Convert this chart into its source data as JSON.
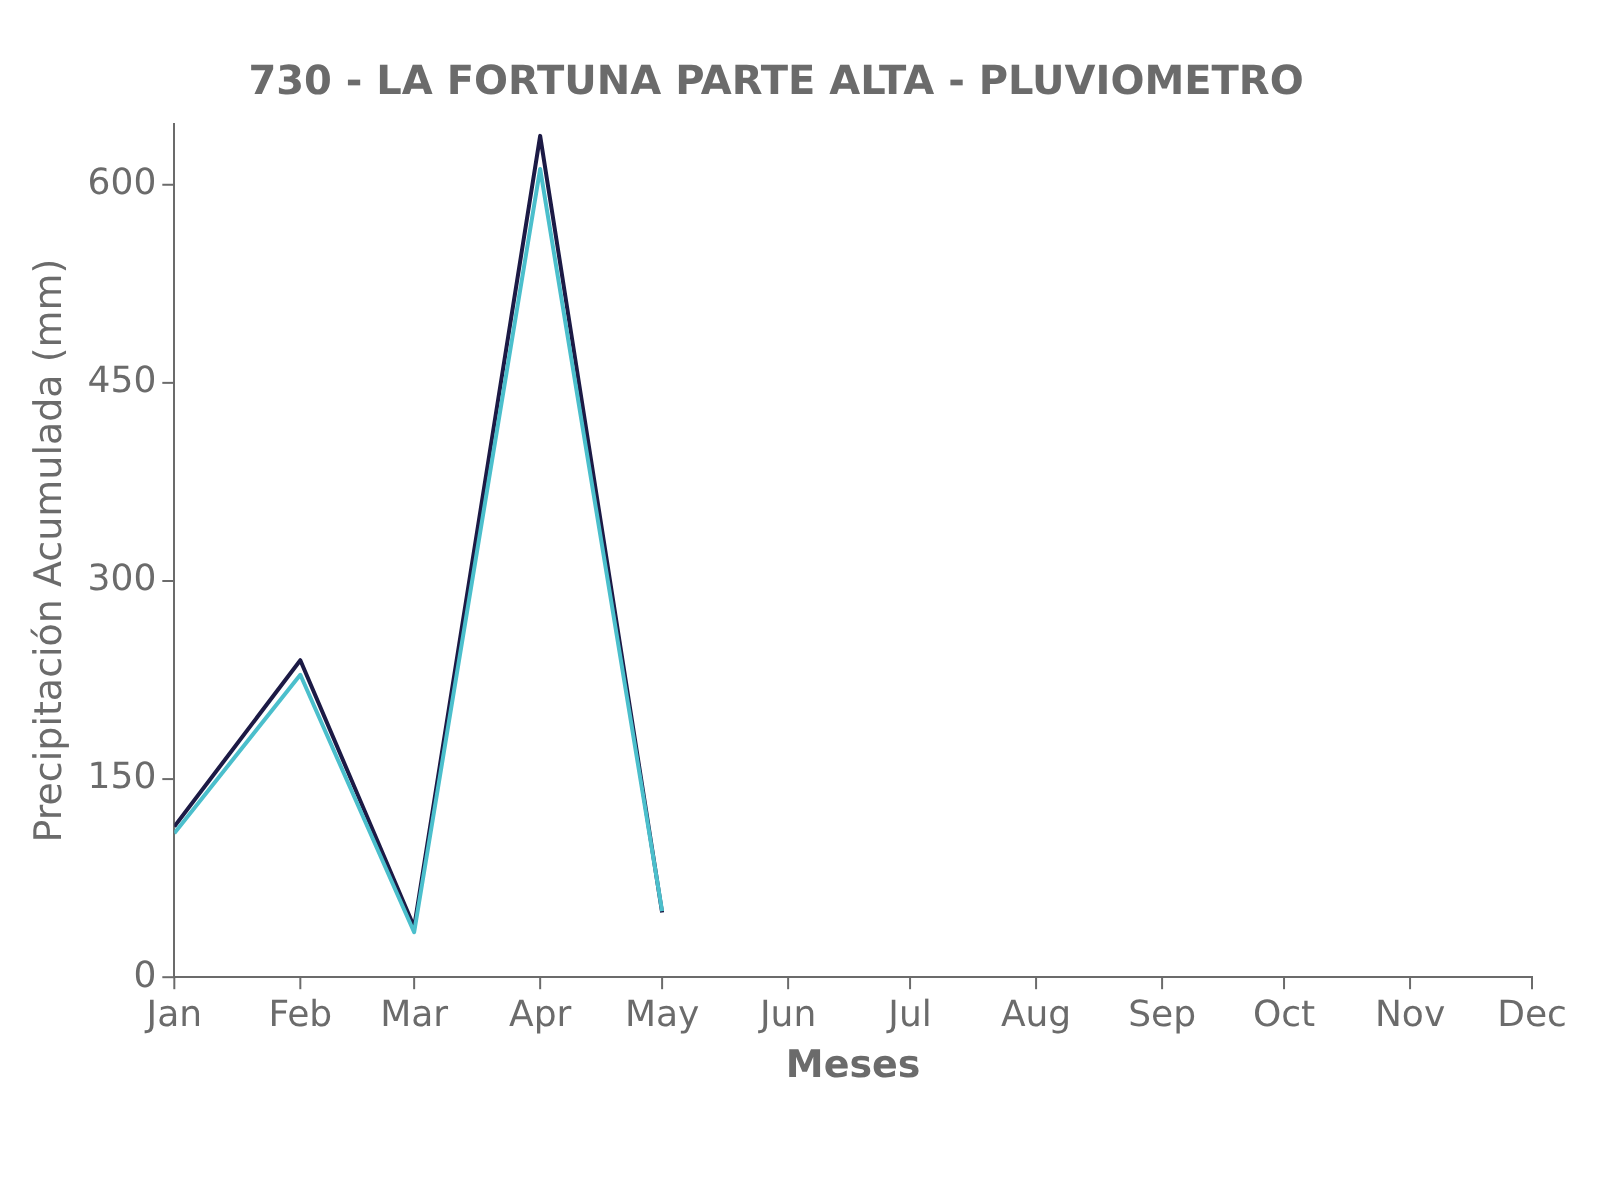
{
  "chart_data": {
    "type": "line",
    "title": "730 - LA FORTUNA PARTE ALTA - PLUVIOMETRO",
    "xlabel": "Meses",
    "ylabel": "Precipitación Acumulada (mm)",
    "x": [
      "--01-01",
      "--02-01",
      "--03-01",
      "--04-01",
      "--05-01"
    ],
    "series": [
      {
        "color": "#1c1a45",
        "values": [
          114,
          240,
          38,
          637,
          49
        ]
      },
      {
        "color": "#4bbfcc",
        "values": [
          109,
          229,
          34,
          612,
          50
        ]
      }
    ],
    "xlim": [
      "--01-01",
      "--12-01"
    ],
    "xticks": [
      {
        "value": "--01-01",
        "label": "Jan"
      },
      {
        "value": "--02-01",
        "label": "Feb"
      },
      {
        "value": "--03-01",
        "label": "Mar"
      },
      {
        "value": "--04-01",
        "label": "Apr"
      },
      {
        "value": "--05-01",
        "label": "May"
      },
      {
        "value": "--06-01",
        "label": "Jun"
      },
      {
        "value": "--07-01",
        "label": "Jul"
      },
      {
        "value": "--08-01",
        "label": "Aug"
      },
      {
        "value": "--09-01",
        "label": "Sep"
      },
      {
        "value": "--10-01",
        "label": "Oct"
      },
      {
        "value": "--11-01",
        "label": "Nov"
      },
      {
        "value": "--12-01",
        "label": "Dec"
      }
    ],
    "ylim": [
      0,
      646
    ],
    "yticks": [
      0,
      150,
      300,
      450,
      600
    ],
    "grid": false,
    "legend": false
  }
}
